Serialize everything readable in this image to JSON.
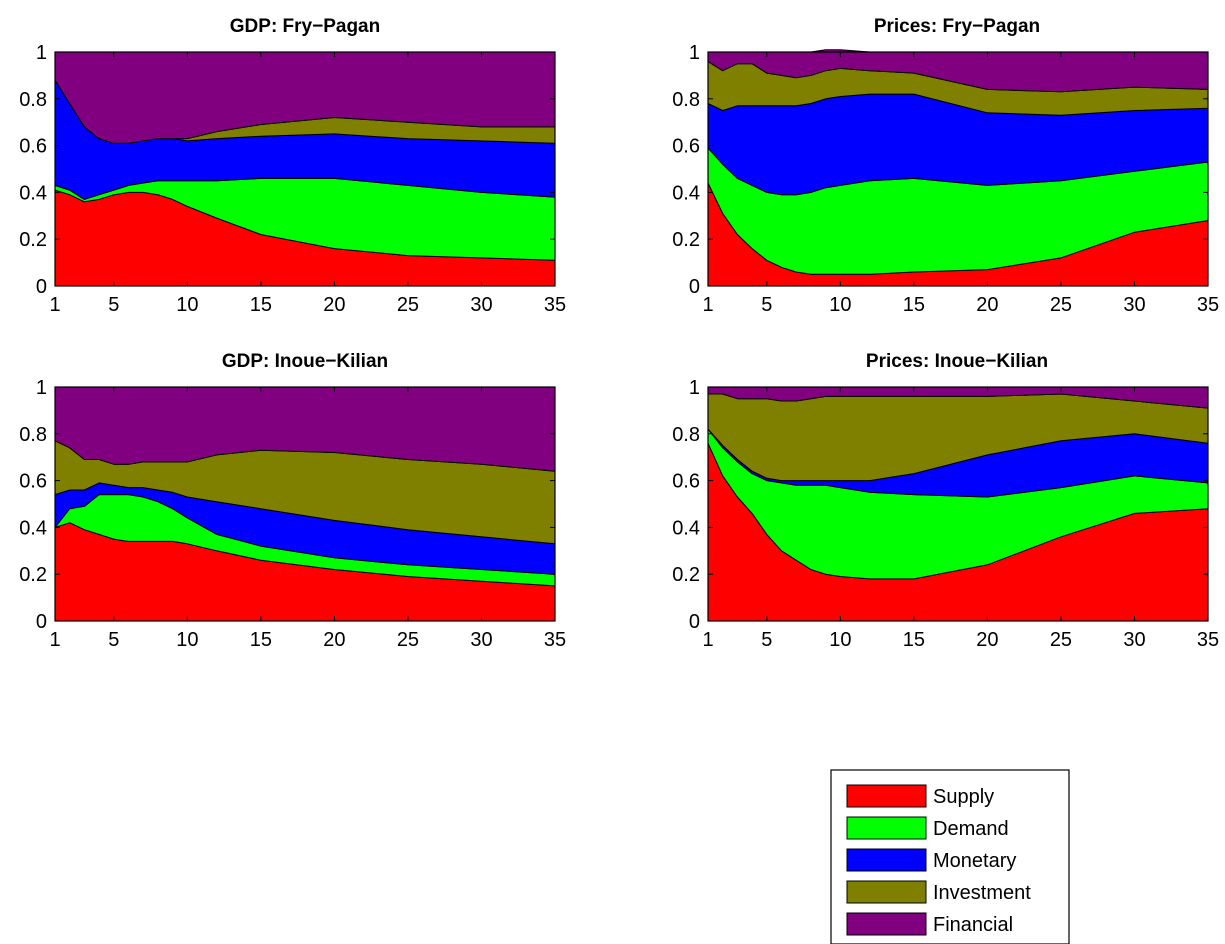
{
  "chart_data": [
    {
      "type": "area",
      "title": "GDP: Fry−Pagan",
      "xlabel": "",
      "ylabel": "",
      "xlim": [
        1,
        35
      ],
      "ylim": [
        0,
        1
      ],
      "xticks": [
        1,
        5,
        10,
        15,
        20,
        25,
        30,
        35
      ],
      "yticks": [
        0,
        0.2,
        0.4,
        0.6,
        0.8,
        1
      ],
      "ytick_labels": [
        "0",
        "0.2",
        "0.4",
        "0.6",
        "0.8",
        "1"
      ],
      "stacked": true,
      "x": [
        1,
        2,
        3,
        4,
        5,
        6,
        7,
        8,
        9,
        10,
        12,
        15,
        20,
        25,
        30,
        35
      ],
      "series": [
        {
          "name": "Supply",
          "color": "#ff0000",
          "values": [
            0.41,
            0.39,
            0.36,
            0.37,
            0.39,
            0.4,
            0.4,
            0.39,
            0.37,
            0.34,
            0.29,
            0.22,
            0.16,
            0.13,
            0.12,
            0.11
          ]
        },
        {
          "name": "Demand",
          "color": "#00ff00",
          "values": [
            0.02,
            0.02,
            0.01,
            0.02,
            0.02,
            0.03,
            0.04,
            0.06,
            0.08,
            0.11,
            0.16,
            0.24,
            0.3,
            0.3,
            0.28,
            0.27
          ]
        },
        {
          "name": "Monetary",
          "color": "#0000ff",
          "values": [
            0.45,
            0.37,
            0.31,
            0.24,
            0.2,
            0.18,
            0.18,
            0.18,
            0.18,
            0.17,
            0.18,
            0.18,
            0.19,
            0.2,
            0.22,
            0.23
          ]
        },
        {
          "name": "Investment",
          "color": "#808000",
          "values": [
            0.0,
            0.0,
            0.0,
            0.0,
            0.0,
            0.0,
            0.0,
            0.0,
            0.0,
            0.01,
            0.03,
            0.05,
            0.07,
            0.07,
            0.06,
            0.07
          ]
        },
        {
          "name": "Financial",
          "color": "#800080",
          "values": [
            0.12,
            0.22,
            0.32,
            0.37,
            0.39,
            0.39,
            0.38,
            0.37,
            0.37,
            0.37,
            0.34,
            0.31,
            0.28,
            0.3,
            0.32,
            0.32
          ]
        }
      ]
    },
    {
      "type": "area",
      "title": "Prices: Fry−Pagan",
      "xlabel": "",
      "ylabel": "",
      "xlim": [
        1,
        35
      ],
      "ylim": [
        0,
        1
      ],
      "xticks": [
        1,
        5,
        10,
        15,
        20,
        25,
        30,
        35
      ],
      "yticks": [
        0,
        0.2,
        0.4,
        0.6,
        0.8,
        1
      ],
      "ytick_labels": [
        "0",
        "0.2",
        "0.4",
        "0.6",
        "0.8",
        "1"
      ],
      "stacked": true,
      "x": [
        1,
        2,
        3,
        4,
        5,
        6,
        7,
        8,
        9,
        10,
        12,
        15,
        20,
        25,
        30,
        35
      ],
      "series": [
        {
          "name": "Supply",
          "color": "#ff0000",
          "values": [
            0.44,
            0.31,
            0.22,
            0.16,
            0.11,
            0.08,
            0.06,
            0.05,
            0.05,
            0.05,
            0.05,
            0.06,
            0.07,
            0.12,
            0.23,
            0.28
          ]
        },
        {
          "name": "Demand",
          "color": "#00ff00",
          "values": [
            0.15,
            0.21,
            0.24,
            0.27,
            0.29,
            0.31,
            0.33,
            0.35,
            0.37,
            0.38,
            0.4,
            0.4,
            0.36,
            0.33,
            0.26,
            0.25
          ]
        },
        {
          "name": "Monetary",
          "color": "#0000ff",
          "values": [
            0.19,
            0.23,
            0.31,
            0.34,
            0.37,
            0.38,
            0.38,
            0.38,
            0.38,
            0.38,
            0.37,
            0.36,
            0.31,
            0.28,
            0.26,
            0.23
          ]
        },
        {
          "name": "Investment",
          "color": "#808000",
          "values": [
            0.18,
            0.17,
            0.18,
            0.18,
            0.14,
            0.13,
            0.12,
            0.12,
            0.12,
            0.12,
            0.1,
            0.09,
            0.1,
            0.1,
            0.1,
            0.08
          ]
        },
        {
          "name": "Financial",
          "color": "#800080",
          "values": [
            0.04,
            0.08,
            0.05,
            0.05,
            0.09,
            0.1,
            0.11,
            0.1,
            0.09,
            0.08,
            0.08,
            0.09,
            0.16,
            0.17,
            0.15,
            0.16
          ]
        }
      ]
    },
    {
      "type": "area",
      "title": "GDP: Inoue−Kilian",
      "xlabel": "",
      "ylabel": "",
      "xlim": [
        1,
        35
      ],
      "ylim": [
        0,
        1
      ],
      "xticks": [
        1,
        5,
        10,
        15,
        20,
        25,
        30,
        35
      ],
      "yticks": [
        0,
        0.2,
        0.4,
        0.6,
        0.8,
        1
      ],
      "ytick_labels": [
        "0",
        "0.2",
        "0.4",
        "0.6",
        "0.8",
        "1"
      ],
      "stacked": true,
      "x": [
        1,
        2,
        3,
        4,
        5,
        6,
        7,
        8,
        9,
        10,
        12,
        15,
        20,
        25,
        30,
        35
      ],
      "series": [
        {
          "name": "Supply",
          "color": "#ff0000",
          "values": [
            0.4,
            0.42,
            0.39,
            0.37,
            0.35,
            0.34,
            0.34,
            0.34,
            0.34,
            0.33,
            0.3,
            0.26,
            0.22,
            0.19,
            0.17,
            0.15
          ]
        },
        {
          "name": "Demand",
          "color": "#00ff00",
          "values": [
            0.0,
            0.06,
            0.1,
            0.17,
            0.19,
            0.2,
            0.19,
            0.17,
            0.14,
            0.11,
            0.07,
            0.06,
            0.05,
            0.05,
            0.05,
            0.05
          ]
        },
        {
          "name": "Monetary",
          "color": "#0000ff",
          "values": [
            0.14,
            0.08,
            0.07,
            0.05,
            0.04,
            0.03,
            0.04,
            0.05,
            0.07,
            0.09,
            0.14,
            0.16,
            0.16,
            0.15,
            0.14,
            0.13
          ]
        },
        {
          "name": "Investment",
          "color": "#808000",
          "values": [
            0.23,
            0.18,
            0.13,
            0.1,
            0.09,
            0.1,
            0.11,
            0.12,
            0.13,
            0.15,
            0.2,
            0.25,
            0.29,
            0.3,
            0.31,
            0.31
          ]
        },
        {
          "name": "Financial",
          "color": "#800080",
          "values": [
            0.23,
            0.26,
            0.31,
            0.31,
            0.33,
            0.33,
            0.32,
            0.32,
            0.32,
            0.32,
            0.29,
            0.27,
            0.28,
            0.31,
            0.33,
            0.36
          ]
        }
      ]
    },
    {
      "type": "area",
      "title": "Prices: Inoue−Kilian",
      "xlabel": "",
      "ylabel": "",
      "xlim": [
        1,
        35
      ],
      "ylim": [
        0,
        1
      ],
      "xticks": [
        1,
        5,
        10,
        15,
        20,
        25,
        30,
        35
      ],
      "yticks": [
        0,
        0.2,
        0.4,
        0.6,
        0.8,
        1
      ],
      "ytick_labels": [
        "0",
        "0.2",
        "0.4",
        "0.6",
        "0.8",
        "1"
      ],
      "stacked": true,
      "x": [
        1,
        2,
        3,
        4,
        5,
        6,
        7,
        8,
        9,
        10,
        12,
        15,
        20,
        25,
        30,
        35
      ],
      "series": [
        {
          "name": "Supply",
          "color": "#ff0000",
          "values": [
            0.76,
            0.62,
            0.53,
            0.46,
            0.37,
            0.3,
            0.26,
            0.22,
            0.2,
            0.19,
            0.18,
            0.18,
            0.24,
            0.36,
            0.46,
            0.48
          ]
        },
        {
          "name": "Demand",
          "color": "#00ff00",
          "values": [
            0.06,
            0.12,
            0.15,
            0.17,
            0.23,
            0.29,
            0.32,
            0.36,
            0.38,
            0.38,
            0.37,
            0.36,
            0.29,
            0.21,
            0.16,
            0.11
          ]
        },
        {
          "name": "Monetary",
          "color": "#0000ff",
          "values": [
            0.0,
            0.01,
            0.01,
            0.01,
            0.01,
            0.01,
            0.02,
            0.02,
            0.02,
            0.03,
            0.05,
            0.09,
            0.18,
            0.2,
            0.18,
            0.17
          ]
        },
        {
          "name": "Investment",
          "color": "#808000",
          "values": [
            0.15,
            0.22,
            0.26,
            0.31,
            0.34,
            0.34,
            0.34,
            0.35,
            0.36,
            0.36,
            0.36,
            0.33,
            0.25,
            0.2,
            0.14,
            0.15
          ]
        },
        {
          "name": "Financial",
          "color": "#800080",
          "values": [
            0.03,
            0.03,
            0.05,
            0.05,
            0.05,
            0.06,
            0.06,
            0.05,
            0.04,
            0.04,
            0.04,
            0.04,
            0.04,
            0.03,
            0.06,
            0.09
          ]
        }
      ]
    }
  ],
  "legend": {
    "placement": "bottom-right",
    "items": [
      {
        "label": "Supply",
        "color": "#ff0000"
      },
      {
        "label": "Demand",
        "color": "#00ff00"
      },
      {
        "label": "Monetary",
        "color": "#0000ff"
      },
      {
        "label": "Investment",
        "color": "#808000"
      },
      {
        "label": "Financial",
        "color": "#800080"
      }
    ]
  }
}
